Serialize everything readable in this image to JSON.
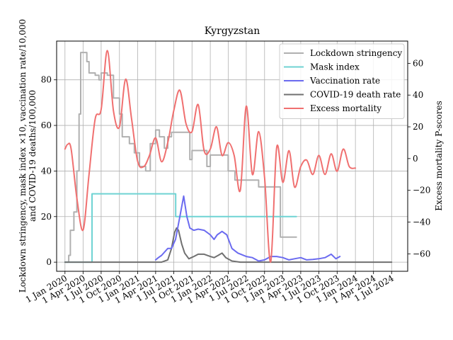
{
  "chart_data": {
    "type": "line",
    "title": "Kyrgyzstan",
    "ylabel_left_lines": [
      "Lockdown stringency, mask index ×10, vaccination rate/10,000",
      "and COVID-19 deaths/100,000"
    ],
    "ylabel_right": "Excess mortality P-scores",
    "xlim": [
      "2019-11-20",
      "2024-09-20"
    ],
    "ylim_left": [
      -4,
      97
    ],
    "ylim_right": [
      -71,
      74
    ],
    "x_ticks": [
      {
        "date": "2020-01-01",
        "label": "1 Jan 2020"
      },
      {
        "date": "2020-04-01",
        "label": "1 Apr 2020"
      },
      {
        "date": "2020-07-01",
        "label": "1 Jul 2020"
      },
      {
        "date": "2020-10-01",
        "label": "1 Oct 2020"
      },
      {
        "date": "2021-01-01",
        "label": "1 Jan 2021"
      },
      {
        "date": "2021-04-01",
        "label": "1 Apr 2021"
      },
      {
        "date": "2021-07-01",
        "label": "1 Jul 2021"
      },
      {
        "date": "2021-10-01",
        "label": "1 Oct 2021"
      },
      {
        "date": "2022-01-01",
        "label": "1 Jan 2022"
      },
      {
        "date": "2022-04-01",
        "label": "1 Apr 2022"
      },
      {
        "date": "2022-07-01",
        "label": "1 Jul 2022"
      },
      {
        "date": "2022-10-01",
        "label": "1 Oct 2022"
      },
      {
        "date": "2023-01-01",
        "label": "1 Jan 2023"
      },
      {
        "date": "2023-04-01",
        "label": "1 Apr 2023"
      },
      {
        "date": "2023-07-01",
        "label": "1 Jul 2023"
      },
      {
        "date": "2023-10-01",
        "label": "1 Oct 2023"
      },
      {
        "date": "2024-01-01",
        "label": "1 Jan 2024"
      },
      {
        "date": "2024-04-01",
        "label": "1 Apr 2024"
      },
      {
        "date": "2024-07-01",
        "label": "1 Jul 2024"
      }
    ],
    "y_ticks_left": [
      0,
      20,
      40,
      60,
      80
    ],
    "y_ticks_right": [
      -60,
      -40,
      -20,
      0,
      20,
      40,
      60
    ],
    "grid": true,
    "legend_position": "top-right",
    "series": [
      {
        "name": "Lockdown stringency",
        "color": "#b0b0b0",
        "axis": "left",
        "step": true,
        "points": [
          [
            "2020-01-01",
            0
          ],
          [
            "2020-01-20",
            3
          ],
          [
            "2020-01-28",
            14
          ],
          [
            "2020-02-15",
            22
          ],
          [
            "2020-03-01",
            40
          ],
          [
            "2020-03-12",
            65
          ],
          [
            "2020-03-20",
            92
          ],
          [
            "2020-04-20",
            88
          ],
          [
            "2020-05-01",
            83
          ],
          [
            "2020-06-01",
            82
          ],
          [
            "2020-06-20",
            80
          ],
          [
            "2020-07-01",
            83
          ],
          [
            "2020-08-01",
            82
          ],
          [
            "2020-09-01",
            72
          ],
          [
            "2020-10-01",
            65
          ],
          [
            "2020-10-15",
            55
          ],
          [
            "2020-11-20",
            52
          ],
          [
            "2020-12-15",
            48
          ],
          [
            "2021-01-10",
            42
          ],
          [
            "2021-02-10",
            40
          ],
          [
            "2021-03-05",
            52
          ],
          [
            "2021-04-01",
            58
          ],
          [
            "2021-04-20",
            55
          ],
          [
            "2021-05-15",
            50
          ],
          [
            "2021-06-01",
            55
          ],
          [
            "2021-06-20",
            57
          ],
          [
            "2021-09-20",
            45
          ],
          [
            "2021-10-01",
            49
          ],
          [
            "2021-12-15",
            42
          ],
          [
            "2022-01-01",
            47
          ],
          [
            "2022-04-01",
            40
          ],
          [
            "2022-05-05",
            36
          ],
          [
            "2022-09-01",
            33
          ],
          [
            "2022-12-20",
            11
          ],
          [
            "2023-03-10",
            11
          ]
        ]
      },
      {
        "name": "Mask index",
        "color": "#6fd3d3",
        "axis": "left",
        "step": true,
        "points": [
          [
            "2020-01-01",
            0
          ],
          [
            "2020-05-15",
            0
          ],
          [
            "2020-05-16",
            30
          ],
          [
            "2021-07-10",
            30
          ],
          [
            "2021-07-11",
            20
          ],
          [
            "2023-03-10",
            20
          ]
        ]
      },
      {
        "name": "Vaccination rate",
        "color": "#6b6bf0",
        "axis": "left",
        "step": false,
        "points": [
          [
            "2021-04-01",
            1
          ],
          [
            "2021-04-15",
            2
          ],
          [
            "2021-05-01",
            3
          ],
          [
            "2021-06-01",
            6
          ],
          [
            "2021-06-20",
            6
          ],
          [
            "2021-07-10",
            10
          ],
          [
            "2021-08-01",
            20
          ],
          [
            "2021-08-20",
            29
          ],
          [
            "2021-09-05",
            20
          ],
          [
            "2021-09-20",
            15
          ],
          [
            "2021-10-10",
            14
          ],
          [
            "2021-11-01",
            14.5
          ],
          [
            "2021-12-01",
            14
          ],
          [
            "2022-01-01",
            12
          ],
          [
            "2022-01-20",
            10
          ],
          [
            "2022-02-05",
            12
          ],
          [
            "2022-03-01",
            13.5
          ],
          [
            "2022-03-25",
            12
          ],
          [
            "2022-04-20",
            6
          ],
          [
            "2022-05-20",
            4
          ],
          [
            "2022-07-01",
            2.5
          ],
          [
            "2022-08-01",
            2
          ],
          [
            "2022-09-01",
            0.5
          ],
          [
            "2022-10-01",
            1
          ],
          [
            "2022-11-01",
            2.5
          ],
          [
            "2022-12-01",
            2.5
          ],
          [
            "2023-01-01",
            2
          ],
          [
            "2023-02-01",
            1
          ],
          [
            "2023-03-01",
            1.5
          ],
          [
            "2023-04-01",
            2
          ],
          [
            "2023-05-01",
            1
          ],
          [
            "2023-06-01",
            1.2
          ],
          [
            "2023-07-01",
            1.5
          ],
          [
            "2023-08-01",
            2
          ],
          [
            "2023-09-01",
            3.5
          ],
          [
            "2023-09-25",
            1.5
          ],
          [
            "2023-10-15",
            2.5
          ]
        ]
      },
      {
        "name": "COVID-19 death rate",
        "color": "#707070",
        "axis": "left",
        "step": false,
        "points": [
          [
            "2020-01-01",
            0
          ],
          [
            "2021-05-01",
            0
          ],
          [
            "2021-06-01",
            1
          ],
          [
            "2021-06-20",
            6
          ],
          [
            "2021-07-05",
            13
          ],
          [
            "2021-07-15",
            15
          ],
          [
            "2021-07-25",
            14
          ],
          [
            "2021-08-10",
            8
          ],
          [
            "2021-08-25",
            4
          ],
          [
            "2021-09-15",
            1.5
          ],
          [
            "2021-10-10",
            2.5
          ],
          [
            "2021-11-01",
            3.5
          ],
          [
            "2021-12-01",
            3.5
          ],
          [
            "2022-01-01",
            2.5
          ],
          [
            "2022-01-20",
            2
          ],
          [
            "2022-02-10",
            3
          ],
          [
            "2022-03-01",
            4
          ],
          [
            "2022-03-20",
            2
          ],
          [
            "2022-04-20",
            0.5
          ],
          [
            "2022-06-01",
            0
          ],
          [
            "2024-07-01",
            0
          ]
        ]
      },
      {
        "name": "Excess mortality",
        "color": "#f07070",
        "axis": "right",
        "step": false,
        "smooth": true,
        "points": [
          [
            "2020-01-01",
            6
          ],
          [
            "2020-01-15",
            9
          ],
          [
            "2020-02-01",
            6
          ],
          [
            "2020-03-01",
            -25
          ],
          [
            "2020-04-01",
            -45
          ],
          [
            "2020-05-01",
            -10
          ],
          [
            "2020-06-01",
            25
          ],
          [
            "2020-07-01",
            31
          ],
          [
            "2020-08-01",
            68
          ],
          [
            "2020-09-01",
            30
          ],
          [
            "2020-10-01",
            20
          ],
          [
            "2020-11-01",
            50
          ],
          [
            "2020-12-01",
            25
          ],
          [
            "2021-01-01",
            -2
          ],
          [
            "2021-02-01",
            -5
          ],
          [
            "2021-03-01",
            2
          ],
          [
            "2021-04-01",
            13
          ],
          [
            "2021-05-01",
            -2
          ],
          [
            "2021-06-01",
            10
          ],
          [
            "2021-07-01",
            30
          ],
          [
            "2021-08-01",
            43
          ],
          [
            "2021-09-01",
            22
          ],
          [
            "2021-10-01",
            17
          ],
          [
            "2021-11-01",
            34
          ],
          [
            "2021-12-01",
            5
          ],
          [
            "2022-01-01",
            6
          ],
          [
            "2022-02-01",
            20
          ],
          [
            "2022-03-01",
            2
          ],
          [
            "2022-04-01",
            10
          ],
          [
            "2022-05-01",
            2
          ],
          [
            "2022-06-01",
            -20
          ],
          [
            "2022-07-01",
            33
          ],
          [
            "2022-08-01",
            -10
          ],
          [
            "2022-09-01",
            17
          ],
          [
            "2022-10-01",
            -12
          ],
          [
            "2022-11-01",
            -65
          ],
          [
            "2022-12-01",
            7
          ],
          [
            "2023-01-01",
            -15
          ],
          [
            "2023-02-01",
            5
          ],
          [
            "2023-03-01",
            -18
          ],
          [
            "2023-04-01",
            -5
          ],
          [
            "2023-05-01",
            -1
          ],
          [
            "2023-06-01",
            -10
          ],
          [
            "2023-07-01",
            2
          ],
          [
            "2023-08-01",
            -10
          ],
          [
            "2023-09-01",
            3
          ],
          [
            "2023-10-01",
            -8
          ],
          [
            "2023-11-01",
            6
          ],
          [
            "2023-12-01",
            -5
          ],
          [
            "2024-01-01",
            -6
          ]
        ]
      }
    ]
  }
}
